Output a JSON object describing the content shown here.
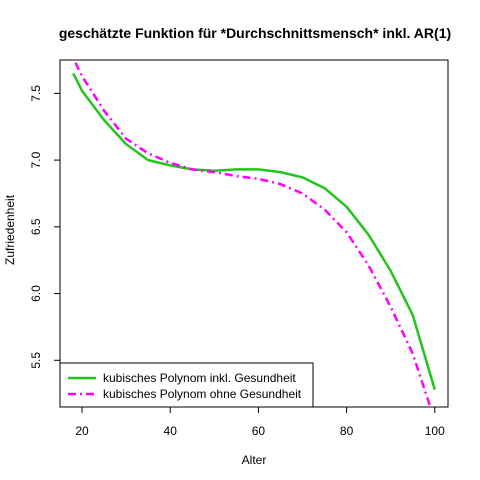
{
  "chart_data": {
    "type": "line",
    "title": "geschätzte Funktion für *Durchschnittsmensch* inkl. AR(1)",
    "xlabel": "Alter",
    "ylabel": "Zufriedenheit",
    "xlim": [
      15,
      103
    ],
    "ylim": [
      5.15,
      7.75
    ],
    "xticks": [
      20,
      40,
      60,
      80,
      100
    ],
    "yticks": [
      5.5,
      6.0,
      6.5,
      7.0,
      7.5
    ],
    "xtick_labels": [
      "20",
      "40",
      "60",
      "80",
      "100"
    ],
    "ytick_labels": [
      "5.5",
      "6.0",
      "6.5",
      "7.0",
      "7.5"
    ],
    "grid": false,
    "legend_position": "bottom-left",
    "series": [
      {
        "name": "kubisches Polynom inkl. Gesundheit",
        "color": "#22c41e",
        "dash": "solid",
        "x": [
          18,
          20,
          25,
          30,
          35,
          40,
          45,
          50,
          55,
          60,
          65,
          70,
          75,
          80,
          85,
          90,
          95,
          100
        ],
        "y": [
          7.65,
          7.52,
          7.3,
          7.12,
          7.0,
          6.96,
          6.93,
          6.92,
          6.93,
          6.93,
          6.91,
          6.87,
          6.79,
          6.65,
          6.44,
          6.17,
          5.84,
          5.28
        ]
      },
      {
        "name": "kubisches Polynom ohne Gesundheit",
        "color": "#ff00ff",
        "dash": "dashdot",
        "x": [
          18.5,
          20,
          25,
          30,
          35,
          40,
          45,
          50,
          55,
          60,
          65,
          70,
          75,
          80,
          85,
          90,
          95,
          99
        ],
        "y": [
          7.73,
          7.63,
          7.37,
          7.16,
          7.05,
          6.98,
          6.93,
          6.91,
          6.88,
          6.86,
          6.82,
          6.75,
          6.63,
          6.46,
          6.21,
          5.9,
          5.55,
          5.15
        ]
      }
    ]
  }
}
